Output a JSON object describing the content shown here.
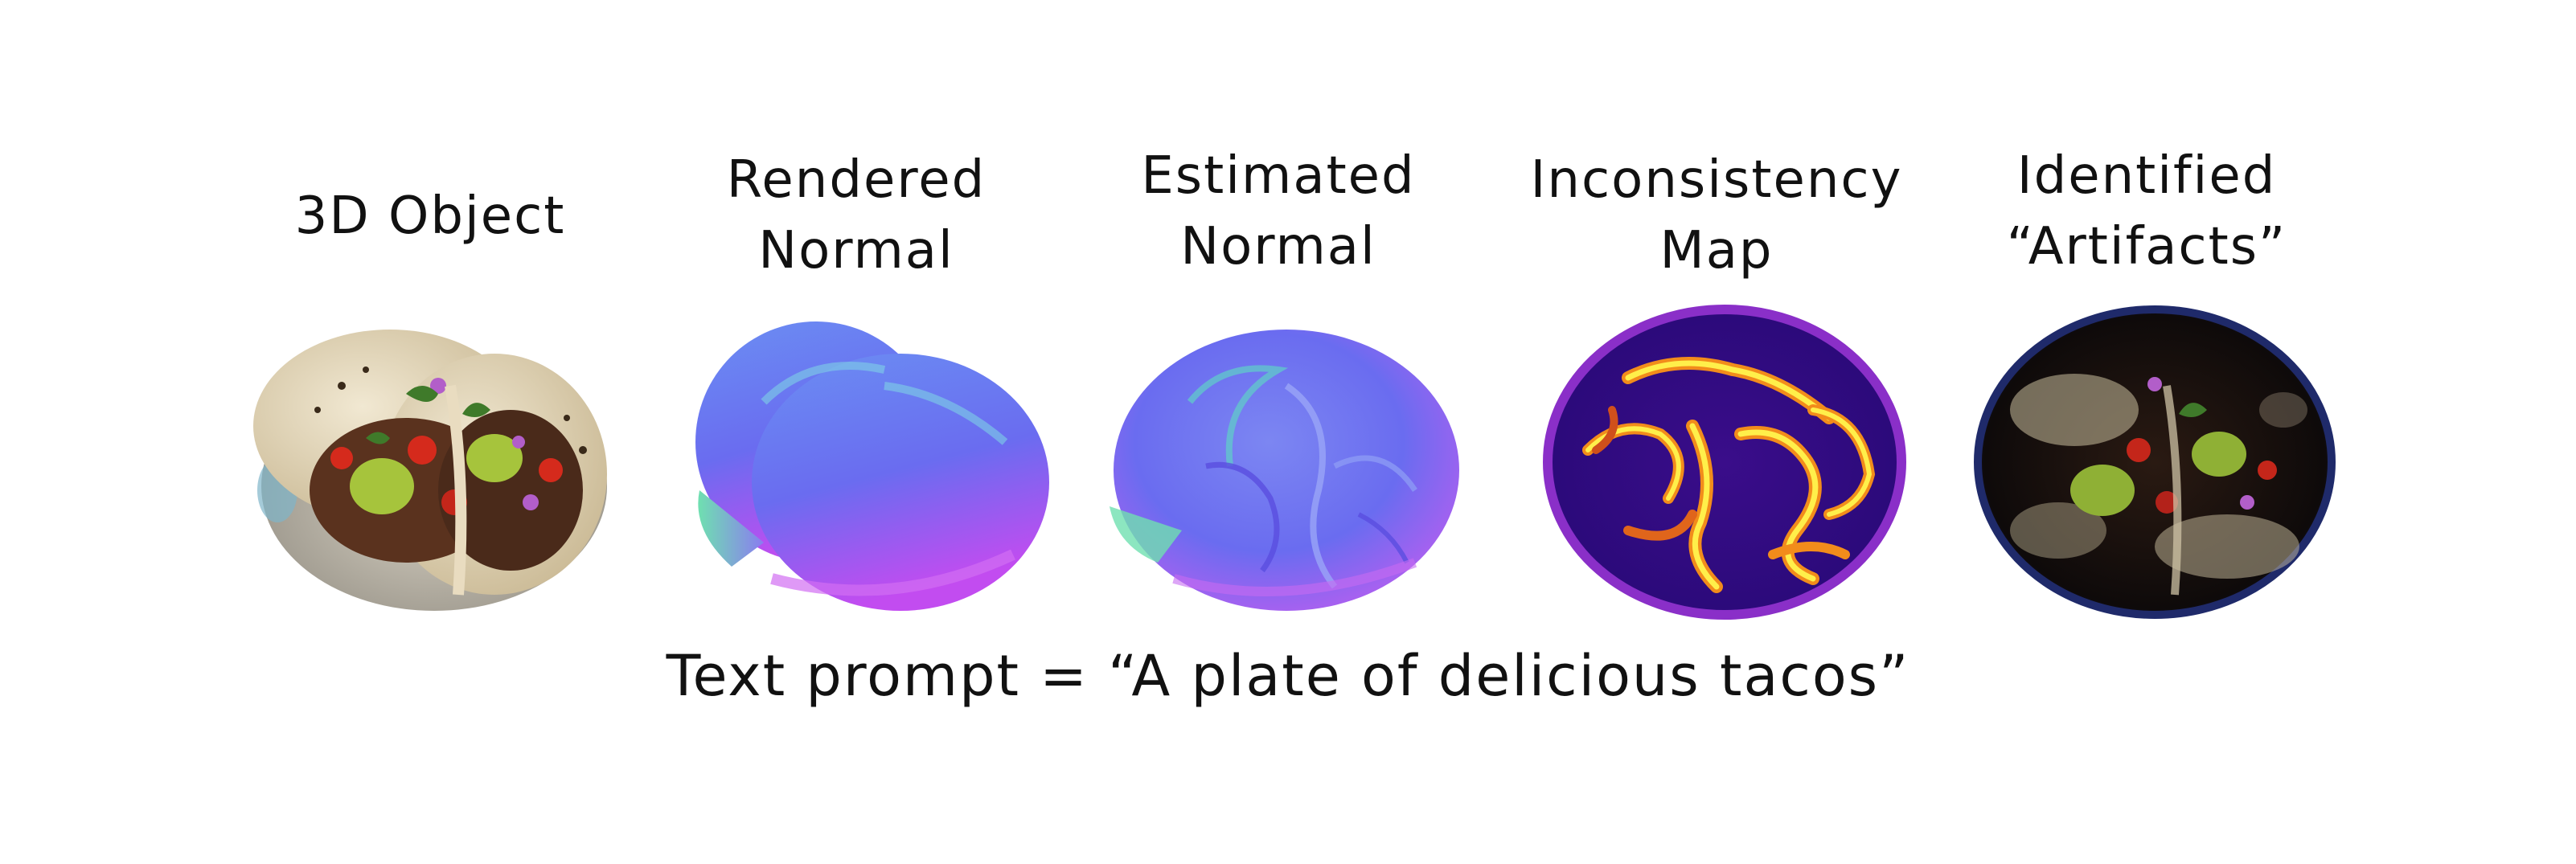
{
  "panels": [
    {
      "title": "3D Object"
    },
    {
      "title": "Rendered\nNormal"
    },
    {
      "title": "Estimated\nNormal"
    },
    {
      "title": "Inconsistency\nMap"
    },
    {
      "title": "Identified\n“Artifacts”"
    }
  ],
  "caption": "Text prompt = “A plate of delicious tacos”",
  "colors": {
    "text": "#111111",
    "normal_blue": "#6a6cf0",
    "normal_magenta": "#c24cf0",
    "normal_green": "#6fe0b0",
    "heat_dark": "#2b0a7a",
    "heat_purple": "#6a18b5",
    "heat_orange": "#f28c1b",
    "heat_yellow": "#ffef4a",
    "tortilla": "#e4d8bf",
    "meat": "#4a2a1a",
    "avocado": "#a6c43c",
    "tomato": "#d52a1c"
  }
}
